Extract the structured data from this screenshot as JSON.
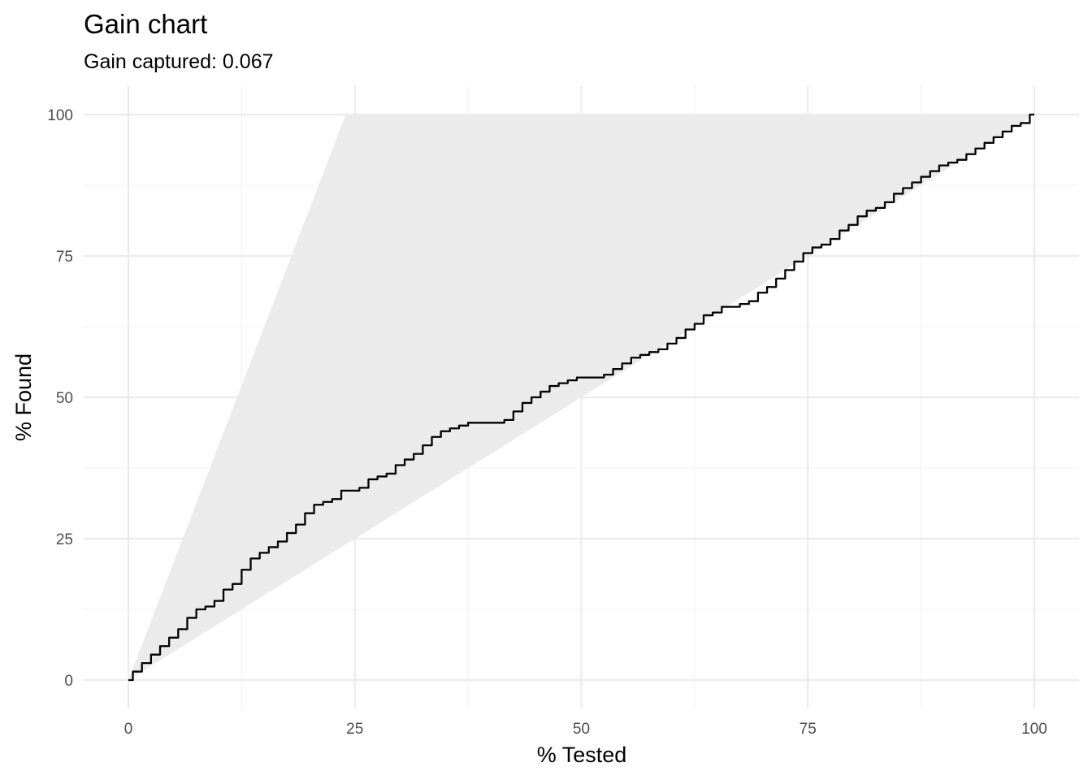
{
  "chart_data": {
    "type": "line",
    "title": "Gain chart",
    "subtitle": "Gain captured: 0.067",
    "xlabel": "% Tested",
    "ylabel": "% Found",
    "xlim": [
      0,
      100
    ],
    "ylim": [
      0,
      100
    ],
    "x_ticks": [
      0,
      25,
      50,
      75,
      100
    ],
    "y_ticks": [
      0,
      25,
      50,
      75,
      100
    ],
    "grid": true,
    "legend": "none",
    "colors": {
      "line": "#000000",
      "band": "#ebebeb",
      "grid_major": "#ebebeb",
      "grid_minor": "#f3f3f3"
    },
    "bands": [
      {
        "x": [
          0,
          24,
          100,
          100,
          0
        ],
        "y": [
          0,
          100,
          100,
          100,
          0
        ]
      },
      {
        "x": [
          0,
          100,
          100,
          0
        ],
        "y": [
          0,
          100,
          100,
          0
        ]
      }
    ],
    "reference_region": {
      "upper": {
        "x": [
          0,
          24,
          100
        ],
        "y": [
          0,
          100,
          100
        ]
      },
      "lower": {
        "x": [
          0,
          100
        ],
        "y": [
          0,
          100
        ]
      }
    },
    "series": [
      {
        "x": [
          0,
          1,
          2,
          3,
          4,
          5,
          6,
          7,
          8,
          9,
          10,
          11,
          12,
          13,
          14,
          15,
          16,
          17,
          18,
          19,
          20,
          21,
          22,
          23,
          24,
          25,
          26,
          27,
          28,
          29,
          30,
          31,
          32,
          33,
          34,
          35,
          36,
          37,
          38,
          39,
          40,
          41,
          42,
          43,
          44,
          45,
          46,
          47,
          48,
          49,
          50,
          51,
          52,
          53,
          54,
          55,
          56,
          57,
          58,
          59,
          60,
          61,
          62,
          63,
          64,
          65,
          66,
          67,
          68,
          69,
          70,
          71,
          72,
          73,
          74,
          75,
          76,
          77,
          78,
          79,
          80,
          81,
          82,
          83,
          84,
          85,
          86,
          87,
          88,
          89,
          90,
          91,
          92,
          93,
          94,
          95,
          96,
          97,
          98,
          99,
          100
        ],
        "y": [
          0,
          1.5,
          3,
          4.5,
          6,
          7.5,
          9,
          11,
          12.5,
          13,
          14,
          16,
          17,
          19.5,
          21.5,
          22.5,
          23.5,
          24.5,
          26,
          27.5,
          29.5,
          31,
          31.5,
          32,
          33.5,
          33.5,
          34,
          35.5,
          36,
          36.5,
          38,
          39,
          40,
          41.5,
          43,
          44,
          44.5,
          45,
          45.5,
          45.5,
          45.5,
          45.5,
          46,
          47.5,
          49,
          50,
          51,
          52,
          52.5,
          53,
          53.5,
          53.5,
          53.5,
          54,
          55,
          56,
          57,
          57.5,
          58,
          58.5,
          59.5,
          60.5,
          62,
          63,
          64.5,
          65,
          66,
          66,
          66.5,
          67,
          68.5,
          69.5,
          71,
          72.5,
          74,
          75.5,
          76.5,
          77,
          78,
          79.5,
          80.5,
          82,
          83,
          83.5,
          84.5,
          86,
          87,
          88,
          89,
          90,
          91,
          91.5,
          92,
          93,
          94,
          95,
          96,
          97,
          98,
          98.5,
          100
        ]
      }
    ]
  }
}
